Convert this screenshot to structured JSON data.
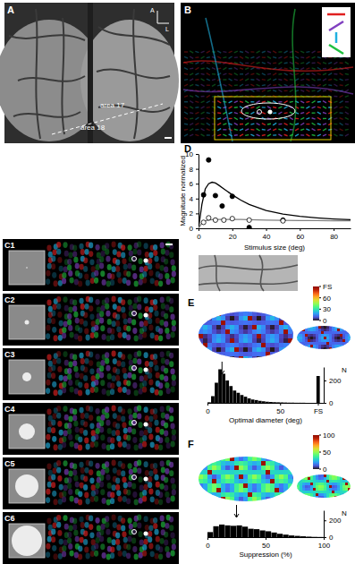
{
  "figure": {
    "panel_labels": [
      "A",
      "B",
      "C1",
      "C2",
      "C3",
      "C4",
      "C5",
      "C6",
      "D",
      "E",
      "F"
    ],
    "orientation": [
      "A",
      "L"
    ],
    "areas": [
      "area 17",
      "area 18"
    ]
  },
  "chart_data": [
    {
      "type": "scatter",
      "xlabel": "Stimulus size (deg)",
      "ylabel": "Magnitude normalized",
      "xlim": [
        0,
        90
      ],
      "xticks": [
        0,
        20,
        40,
        60,
        80
      ],
      "ylim": [
        0,
        10
      ],
      "yticks": [
        0,
        2,
        4,
        6,
        8,
        10
      ],
      "series": [
        {
          "type": "scatter",
          "marker": "filled_circle",
          "color": "#000000",
          "x": [
            3,
            6,
            10,
            14,
            20,
            30,
            50
          ],
          "values": [
            4.5,
            9.2,
            4.4,
            3.0,
            4.3,
            0.1,
            1.1
          ]
        },
        {
          "type": "scatter",
          "marker": "open_circle",
          "color": "#000000",
          "x": [
            3,
            6,
            10,
            15,
            20,
            30,
            50
          ],
          "values": [
            0.8,
            1.4,
            1.1,
            1.1,
            1.3,
            1.1,
            1.0
          ]
        },
        {
          "type": "line",
          "line_style": "solid",
          "color": "#000000",
          "x": [
            0,
            2,
            4,
            6,
            8,
            10,
            12,
            15,
            20,
            25,
            30,
            40,
            50,
            60,
            70,
            80,
            90
          ],
          "values": [
            0,
            3.2,
            5.3,
            6.0,
            6.2,
            6.1,
            5.8,
            5.3,
            4.5,
            3.8,
            3.2,
            2.4,
            1.9,
            1.6,
            1.4,
            1.25,
            1.15
          ]
        },
        {
          "type": "line",
          "line_style": "solid",
          "color": "#808080",
          "x": [
            0,
            2,
            4,
            6,
            8,
            10,
            12,
            15,
            20,
            25,
            30,
            40,
            50,
            60,
            70,
            80,
            90
          ],
          "values": [
            0,
            0.7,
            1.0,
            1.1,
            1.15,
            1.2,
            1.2,
            1.2,
            1.2,
            1.18,
            1.15,
            1.1,
            1.08,
            1.05,
            1.03,
            1.02,
            1.0
          ]
        }
      ]
    },
    {
      "type": "histogram",
      "color": "#000000",
      "xlabel": "Optimal diameter (deg)",
      "ylabel": "N",
      "xlim": [
        0,
        80
      ],
      "xticks": [
        0,
        50,
        {
          "value": 76,
          "label": "FS"
        }
      ],
      "ylim": [
        0,
        320
      ],
      "yticks": [
        0,
        200
      ],
      "bins": [
        0,
        2.5,
        5,
        7.5,
        10,
        12.5,
        15,
        17.5,
        20,
        22.5,
        25,
        27.5,
        30,
        32.5,
        35,
        37.5,
        40,
        42.5,
        45,
        47.5,
        50,
        52.5,
        55,
        57.5,
        60,
        62.5,
        65,
        67.5,
        70,
        72.5,
        75,
        77.5,
        80
      ],
      "counts": [
        5,
        60,
        180,
        300,
        260,
        200,
        150,
        110,
        90,
        70,
        55,
        40,
        30,
        25,
        18,
        14,
        10,
        8,
        6,
        5,
        4,
        3,
        2,
        2,
        1,
        1,
        1,
        0,
        0,
        0,
        240,
        0
      ],
      "arrow_x": 10,
      "colorbar": {
        "range": [
          0,
          90
        ],
        "ticks": [
          0,
          30,
          60,
          {
            "value": 90,
            "label": "FS"
          }
        ]
      }
    },
    {
      "type": "histogram",
      "color": "#000000",
      "xlabel": "Suppression (%)",
      "ylabel": "N",
      "xlim": [
        0,
        100
      ],
      "xticks": [
        0,
        50,
        100
      ],
      "ylim": [
        0,
        320
      ],
      "yticks": [
        0,
        200
      ],
      "bins": [
        0,
        5,
        10,
        15,
        20,
        25,
        30,
        35,
        40,
        45,
        50,
        55,
        60,
        65,
        70,
        75,
        80,
        85,
        90,
        95,
        100
      ],
      "counts": [
        60,
        130,
        150,
        140,
        135,
        140,
        125,
        100,
        95,
        80,
        70,
        55,
        40,
        30,
        20,
        15,
        10,
        6,
        3,
        2
      ],
      "arrow_x": 25,
      "colorbar": {
        "range": [
          0,
          100
        ],
        "ticks": [
          0,
          50,
          100
        ]
      }
    }
  ]
}
